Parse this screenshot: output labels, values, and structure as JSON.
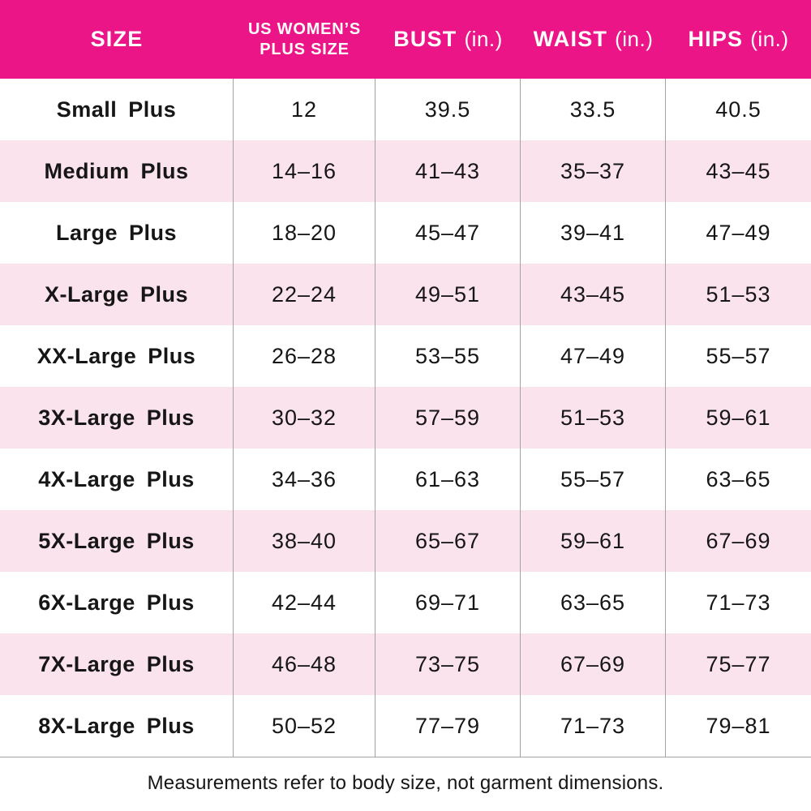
{
  "colors": {
    "header_bg": "#EC1588",
    "header_text": "#FFFFFF",
    "row_bg": "#FFFFFF",
    "row_alt_bg": "#FBE3EE",
    "divider": "#A3A3A3",
    "text": "#161616"
  },
  "header": {
    "size": "SIZE",
    "us_line1": "US WOMEN’S",
    "us_line2": "PLUS SIZE",
    "bust": "BUST",
    "bust_suffix": "(in.)",
    "waist": "WAIST",
    "waist_suffix": "(in.)",
    "hips": "HIPS",
    "hips_suffix": "(in.)"
  },
  "chart_data": {
    "type": "table",
    "columns": [
      "SIZE",
      "US WOMEN’S PLUS SIZE",
      "BUST (in.)",
      "WAIST (in.)",
      "HIPS (in.)"
    ],
    "rows": [
      [
        "Small Plus",
        "12",
        "39.5",
        "33.5",
        "40.5"
      ],
      [
        "Medium Plus",
        "14–16",
        "41–43",
        "35–37",
        "43–45"
      ],
      [
        "Large Plus",
        "18–20",
        "45–47",
        "39–41",
        "47–49"
      ],
      [
        "X-Large Plus",
        "22–24",
        "49–51",
        "43–45",
        "51–53"
      ],
      [
        "XX-Large Plus",
        "26–28",
        "53–55",
        "47–49",
        "55–57"
      ],
      [
        "3X-Large Plus",
        "30–32",
        "57–59",
        "51–53",
        "59–61"
      ],
      [
        "4X-Large Plus",
        "34–36",
        "61–63",
        "55–57",
        "63–65"
      ],
      [
        "5X-Large Plus",
        "38–40",
        "65–67",
        "59–61",
        "67–69"
      ],
      [
        "6X-Large Plus",
        "42–44",
        "69–71",
        "63–65",
        "71–73"
      ],
      [
        "7X-Large Plus",
        "46–48",
        "73–75",
        "67–69",
        "75–77"
      ],
      [
        "8X-Large Plus",
        "50–52",
        "77–79",
        "71–73",
        "79–81"
      ]
    ],
    "footnote": "Measurements refer to body size, not garment dimensions."
  }
}
